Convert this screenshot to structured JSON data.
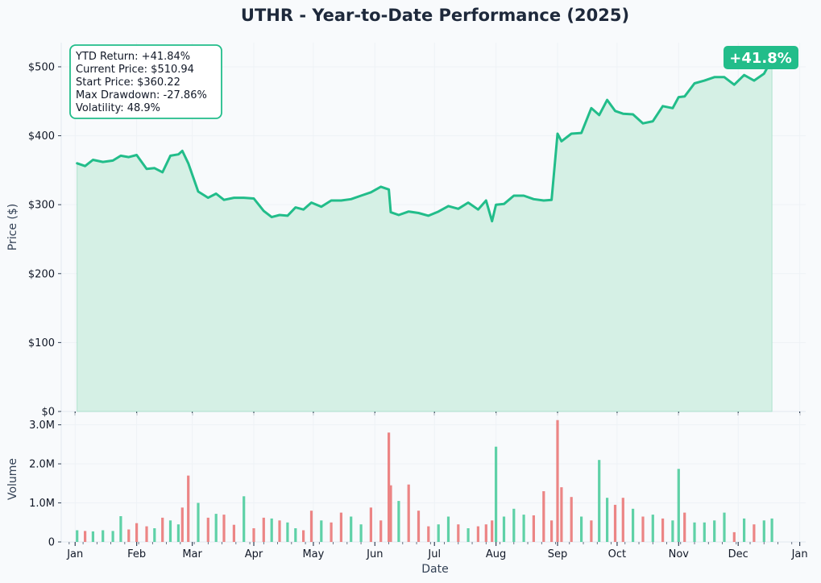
{
  "chart_data": [
    {
      "type": "area",
      "title": "UTHR - Year-to-Date Performance (2025)",
      "ylabel": "Price ($)",
      "ylim": [
        0,
        535
      ],
      "yticks": [
        "$0",
        "$100",
        "$200",
        "$300",
        "$400",
        "$500"
      ],
      "yticks_values": [
        0,
        100,
        200,
        300,
        400,
        500
      ],
      "grid": true,
      "x_range": [
        "2024-12-25",
        "2026-01-04"
      ],
      "colors": {
        "line": "#22bd8a",
        "fill": "#d5f0e5"
      },
      "stats": [
        "YTD Return: +41.84%",
        "Current Price: $510.94",
        "Start Price: $360.22",
        "Max Drawdown: -27.86%",
        "Volatility: 48.9%"
      ],
      "badge": "+41.8%",
      "series": [
        {
          "x": [
            "2025-01-02",
            "2025-01-06",
            "2025-01-10",
            "2025-01-15",
            "2025-01-20",
            "2025-01-24",
            "2025-01-28",
            "2025-02-01",
            "2025-02-06",
            "2025-02-10",
            "2025-02-14",
            "2025-02-18",
            "2025-02-22",
            "2025-02-24",
            "2025-02-27",
            "2025-03-04",
            "2025-03-09",
            "2025-03-13",
            "2025-03-17",
            "2025-03-22",
            "2025-03-27",
            "2025-04-01",
            "2025-04-06",
            "2025-04-10",
            "2025-04-14",
            "2025-04-18",
            "2025-04-22",
            "2025-04-26",
            "2025-04-30",
            "2025-05-05",
            "2025-05-10",
            "2025-05-15",
            "2025-05-20",
            "2025-05-25",
            "2025-05-30",
            "2025-06-04",
            "2025-06-08",
            "2025-06-09",
            "2025-06-13",
            "2025-06-18",
            "2025-06-23",
            "2025-06-28",
            "2025-07-03",
            "2025-07-08",
            "2025-07-13",
            "2025-07-18",
            "2025-07-23",
            "2025-07-27",
            "2025-07-30",
            "2025-08-01",
            "2025-08-05",
            "2025-08-10",
            "2025-08-15",
            "2025-08-20",
            "2025-08-25",
            "2025-08-29",
            "2025-09-01",
            "2025-09-03",
            "2025-09-08",
            "2025-09-13",
            "2025-09-18",
            "2025-09-22",
            "2025-09-26",
            "2025-09-30",
            "2025-10-04",
            "2025-10-09",
            "2025-10-14",
            "2025-10-19",
            "2025-10-24",
            "2025-10-29",
            "2025-11-01",
            "2025-11-04",
            "2025-11-09",
            "2025-11-14",
            "2025-11-19",
            "2025-11-24",
            "2025-11-29",
            "2025-12-04",
            "2025-12-09",
            "2025-12-14",
            "2025-12-18"
          ],
          "values": [
            360,
            356,
            365,
            362,
            364,
            371,
            369,
            372,
            352,
            353,
            347,
            371,
            373,
            378,
            360,
            319,
            310,
            316,
            307,
            310,
            310,
            309,
            291,
            282,
            285,
            284,
            296,
            293,
            303,
            297,
            306,
            306,
            308,
            313,
            318,
            326,
            322,
            289,
            285,
            290,
            288,
            284,
            290,
            298,
            294,
            303,
            293,
            306,
            276,
            300,
            301,
            313,
            313,
            308,
            306,
            307,
            403,
            392,
            403,
            404,
            440,
            430,
            452,
            436,
            432,
            431,
            418,
            421,
            443,
            440,
            456,
            457,
            476,
            480,
            485,
            485,
            474,
            488,
            480,
            490,
            511
          ]
        }
      ]
    },
    {
      "type": "bar",
      "xlabel": "Date",
      "ylabel": "Volume",
      "ylim": [
        0,
        3.3
      ],
      "yticks": [
        "0",
        "1.0M",
        "2.0M",
        "3.0M"
      ],
      "yticks_values": [
        0,
        1,
        2,
        3
      ],
      "x_ticks": [
        "Jan",
        "Feb",
        "Mar",
        "Apr",
        "May",
        "Jun",
        "Jul",
        "Aug",
        "Sep",
        "Oct",
        "Nov",
        "Dec",
        "Jan"
      ],
      "x_ticks_dates": [
        "2025-01-01",
        "2025-02-01",
        "2025-03-01",
        "2025-04-01",
        "2025-05-01",
        "2025-06-01",
        "2025-07-01",
        "2025-08-01",
        "2025-09-01",
        "2025-10-01",
        "2025-11-01",
        "2025-12-01",
        "2026-01-01"
      ],
      "grid": true,
      "colors": {
        "up": "#5fd1a7",
        "down": "#ec8585"
      },
      "series": [
        {
          "name": "Volume (M)",
          "x": [
            "2025-01-02",
            "2025-01-06",
            "2025-01-10",
            "2025-01-15",
            "2025-01-20",
            "2025-01-24",
            "2025-01-28",
            "2025-02-01",
            "2025-02-06",
            "2025-02-10",
            "2025-02-14",
            "2025-02-18",
            "2025-02-22",
            "2025-02-24",
            "2025-02-27",
            "2025-03-04",
            "2025-03-09",
            "2025-03-13",
            "2025-03-17",
            "2025-03-22",
            "2025-03-27",
            "2025-04-01",
            "2025-04-06",
            "2025-04-10",
            "2025-04-14",
            "2025-04-18",
            "2025-04-22",
            "2025-04-26",
            "2025-04-30",
            "2025-05-05",
            "2025-05-10",
            "2025-05-15",
            "2025-05-20",
            "2025-05-25",
            "2025-05-30",
            "2025-06-04",
            "2025-06-08",
            "2025-06-09",
            "2025-06-13",
            "2025-06-18",
            "2025-06-23",
            "2025-06-28",
            "2025-07-03",
            "2025-07-08",
            "2025-07-13",
            "2025-07-18",
            "2025-07-23",
            "2025-07-27",
            "2025-07-30",
            "2025-08-01",
            "2025-08-05",
            "2025-08-10",
            "2025-08-15",
            "2025-08-20",
            "2025-08-25",
            "2025-08-29",
            "2025-09-01",
            "2025-09-03",
            "2025-09-08",
            "2025-09-13",
            "2025-09-18",
            "2025-09-22",
            "2025-09-26",
            "2025-09-30",
            "2025-10-04",
            "2025-10-09",
            "2025-10-14",
            "2025-10-19",
            "2025-10-24",
            "2025-10-29",
            "2025-11-01",
            "2025-11-04",
            "2025-11-09",
            "2025-11-14",
            "2025-11-19",
            "2025-11-24",
            "2025-11-29",
            "2025-12-04",
            "2025-12-09",
            "2025-12-14",
            "2025-12-18"
          ],
          "values": [
            0.3,
            0.28,
            0.27,
            0.3,
            0.28,
            0.66,
            0.32,
            0.48,
            0.4,
            0.35,
            0.62,
            0.55,
            0.45,
            0.88,
            1.7,
            1.0,
            0.62,
            0.72,
            0.7,
            0.44,
            1.17,
            0.35,
            0.62,
            0.6,
            0.55,
            0.5,
            0.35,
            0.3,
            0.8,
            0.55,
            0.5,
            0.75,
            0.65,
            0.45,
            0.88,
            0.55,
            2.8,
            1.45,
            1.05,
            1.47,
            0.8,
            0.4,
            0.45,
            0.65,
            0.45,
            0.35,
            0.4,
            0.45,
            0.55,
            2.44,
            0.65,
            0.85,
            0.7,
            0.68,
            1.3,
            0.55,
            3.12,
            1.4,
            1.15,
            0.65,
            0.55,
            2.1,
            1.13,
            0.95,
            1.13,
            0.85,
            0.65,
            0.7,
            0.6,
            0.55,
            1.87,
            0.75,
            0.5,
            0.5,
            0.55,
            0.75,
            0.25,
            0.6,
            0.45,
            0.55,
            0.6
          ],
          "direction": [
            "up",
            "down",
            "up",
            "up",
            "up",
            "up",
            "down",
            "down",
            "down",
            "up",
            "down",
            "up",
            "up",
            "down",
            "down",
            "up",
            "down",
            "up",
            "down",
            "down",
            "up",
            "down",
            "down",
            "up",
            "down",
            "up",
            "up",
            "down",
            "down",
            "up",
            "down",
            "down",
            "up",
            "up",
            "down",
            "down",
            "down",
            "down",
            "up",
            "down",
            "down",
            "down",
            "up",
            "up",
            "down",
            "up",
            "down",
            "down",
            "down",
            "up",
            "up",
            "up",
            "up",
            "down",
            "down",
            "down",
            "down",
            "down",
            "down",
            "up",
            "down",
            "up",
            "up",
            "down",
            "down",
            "up",
            "down",
            "up",
            "down",
            "up",
            "up",
            "down",
            "up",
            "up",
            "up",
            "up",
            "down",
            "up",
            "down",
            "up",
            "up"
          ]
        }
      ]
    }
  ]
}
